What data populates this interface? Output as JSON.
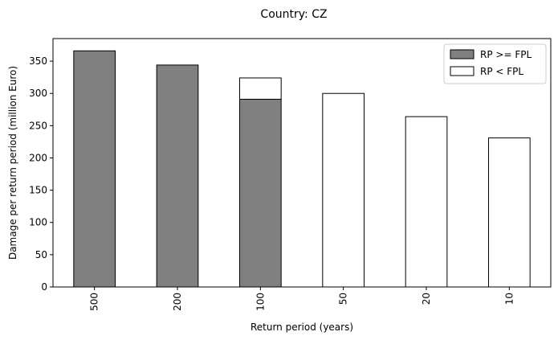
{
  "chart_data": {
    "type": "bar",
    "stacked": true,
    "title": "Country: CZ",
    "xlabel": "Return period (years)",
    "ylabel": "Damage per return period (million Euro)",
    "categories": [
      "500",
      "200",
      "100",
      "50",
      "20",
      "10"
    ],
    "ylim": [
      0,
      385
    ],
    "yticks": [
      0,
      50,
      100,
      150,
      200,
      250,
      300,
      350
    ],
    "grid": false,
    "legend_position": "top-right",
    "series": [
      {
        "name": "RP >= FPL",
        "color": "#808080",
        "values": [
          366,
          344,
          291,
          0,
          0,
          0
        ]
      },
      {
        "name": "RP < FPL",
        "color": "#ffffff",
        "values": [
          0,
          0,
          33,
          300,
          264,
          231
        ]
      }
    ]
  }
}
